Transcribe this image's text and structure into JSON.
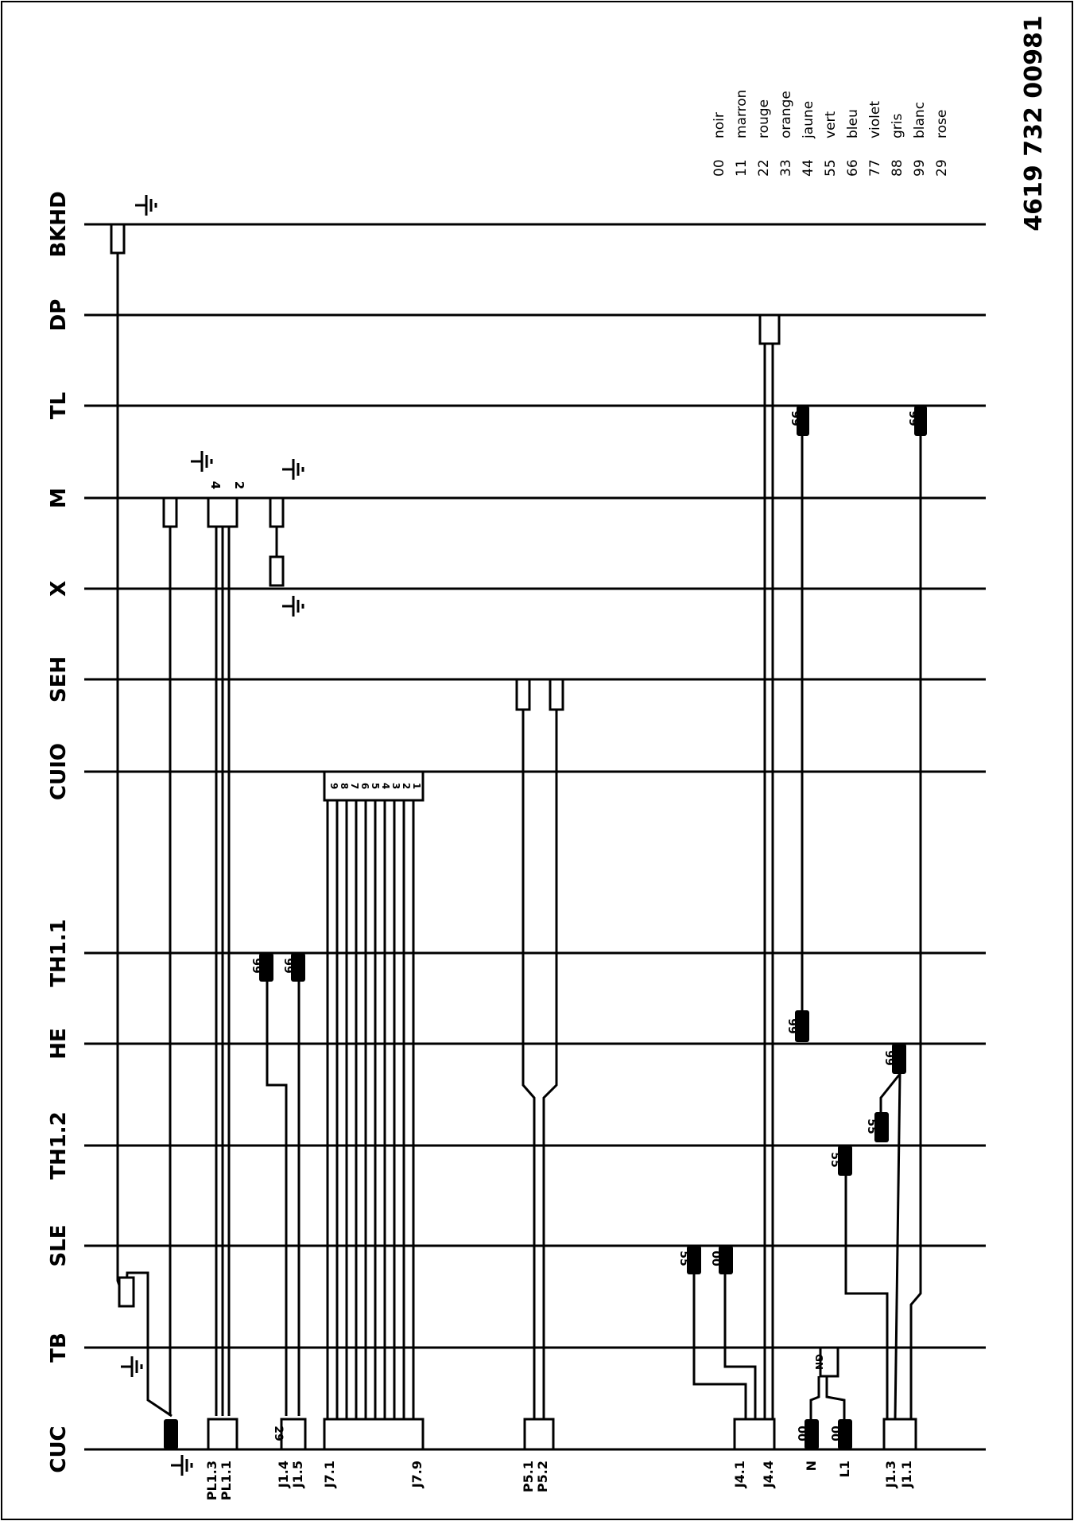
{
  "doc_number": "4619 732 00981",
  "legend": [
    {
      "code": "00",
      "color": "noir"
    },
    {
      "code": "11",
      "color": "marron"
    },
    {
      "code": "22",
      "color": "rouge"
    },
    {
      "code": "33",
      "color": "orange"
    },
    {
      "code": "44",
      "color": "jaune"
    },
    {
      "code": "55",
      "color": "vert"
    },
    {
      "code": "66",
      "color": "bleu"
    },
    {
      "code": "77",
      "color": "violet"
    },
    {
      "code": "88",
      "color": "gris"
    },
    {
      "code": "99",
      "color": "blanc"
    },
    {
      "code": "29",
      "color": "rose"
    }
  ],
  "rails": [
    "BKHD",
    "DP",
    "TL",
    "M",
    "X",
    "SEH",
    "CUIO",
    "TH1.1",
    "HE",
    "TH1.2",
    "SLE",
    "TB",
    "CUC"
  ],
  "connectors": {
    "pl": [
      "PL1.3",
      "PL1.1"
    ],
    "j1a": [
      "J1.4",
      "J1.5"
    ],
    "j7": [
      "J7.1",
      "J7.9"
    ],
    "p5": [
      "P5.1",
      "P5.2"
    ],
    "j4": [
      "J4.1",
      "J4.4"
    ],
    "nl": [
      "N",
      "L1"
    ],
    "j1b": [
      "J1.3",
      "J1.1"
    ]
  },
  "wire_colors": {
    "tl_a": "99",
    "tl_b": "99",
    "th11_a": "99",
    "th11_b": "99",
    "he_a": "99",
    "he_b": "99",
    "th12_a": "55",
    "th12_b": "55",
    "sle_a": "55",
    "sle_b": "00",
    "cuc_n": "00",
    "cuc_l1": "00",
    "j1a": "29",
    "tb_gn": "GN"
  },
  "pin_labels": {
    "m_pins": [
      "4",
      "2"
    ],
    "cuio_pins": [
      "9",
      "8",
      "7",
      "6",
      "5",
      "4",
      "3",
      "2",
      "1"
    ]
  }
}
